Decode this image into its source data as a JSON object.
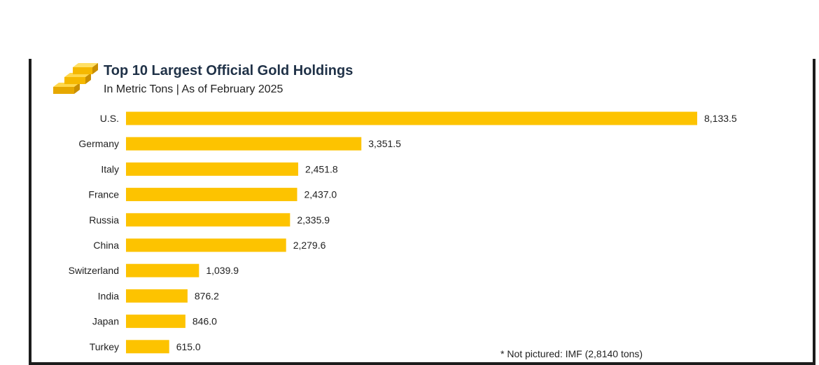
{
  "header": {
    "title": "Top 10 Largest Official Gold Holdings",
    "subtitle": "In Metric Tons | As of February 2025",
    "logo_icon": "gold-bars-icon"
  },
  "footnote": "* Not pictured: IMF (2,8140 tons)",
  "colors": {
    "bar": "#FDC300",
    "title": "#1f3147",
    "text": "#222222"
  },
  "chart_data": {
    "type": "bar",
    "orientation": "horizontal",
    "title": "Top 10 Largest Official Gold Holdings",
    "subtitle": "In Metric Tons | As of February 2025",
    "categories": [
      "U.S.",
      "Germany",
      "Italy",
      "France",
      "Russia",
      "China",
      "Switzerland",
      "India",
      "Japan",
      "Turkey"
    ],
    "values": [
      8133.5,
      3351.5,
      2451.8,
      2437.0,
      2335.9,
      2279.6,
      1039.9,
      876.2,
      846.0,
      615.0
    ],
    "value_labels": [
      "8,133.5",
      "3,351.5",
      "2,451.8",
      "2,437.0",
      "2,335.9",
      "2,279.6",
      "1,039.9",
      "876.2",
      "846.0",
      "615.0"
    ],
    "xlabel": "",
    "ylabel": "",
    "grid": false,
    "legend": "none"
  }
}
